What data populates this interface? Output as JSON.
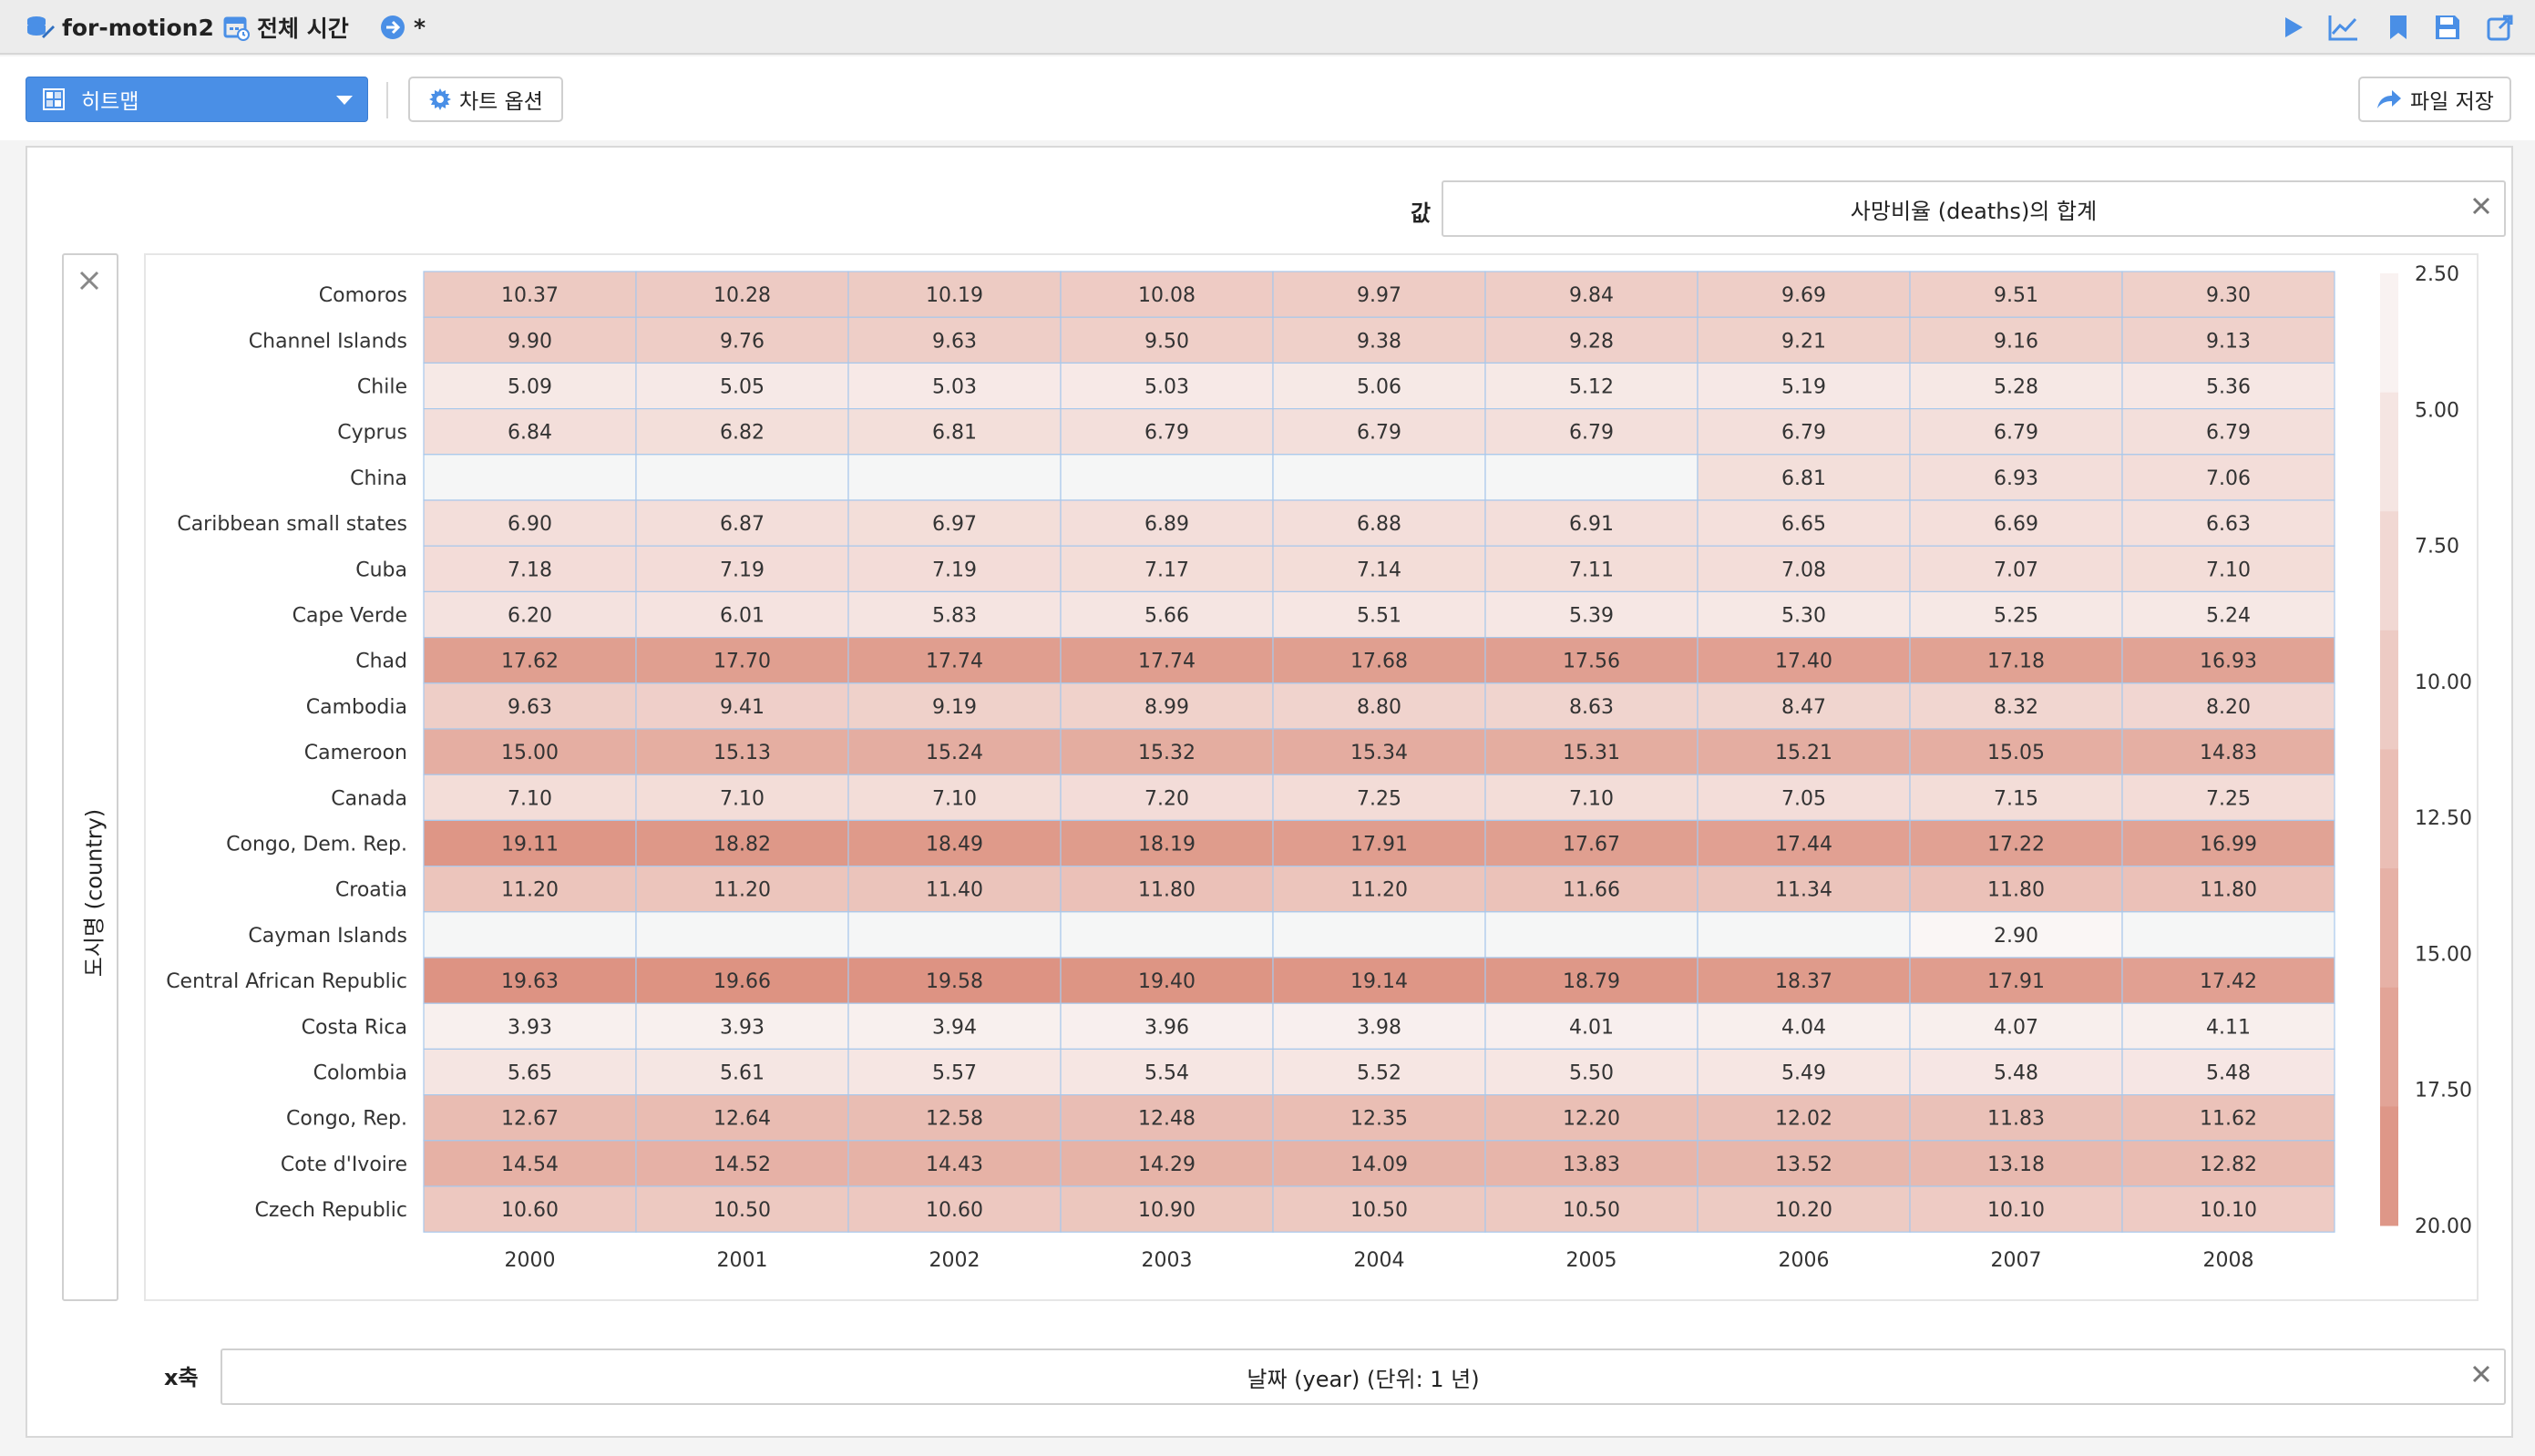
{
  "topbar": {
    "dataset_name": "for-motion2",
    "time_range": "전체 시간",
    "modified_marker": "*"
  },
  "toolbar": {
    "chart_type": "히트맵",
    "chart_options": "차트 옵션",
    "save_file": "파일 저장"
  },
  "fields": {
    "value_label": "값",
    "value_field": "사망비율 (deaths)의 합계",
    "y_axis_field": "도시명 (country)",
    "x_axis_label": "x축",
    "x_axis_field": "날짜 (year) (단위: 1 년)"
  },
  "colors": {
    "accent": "#4a8fe6",
    "heat_low": "#fbf8f8",
    "heat_high": "#dc9180",
    "empty_cell": "#f5f6f6",
    "cell_border": "#a8c8ec"
  },
  "chart_data": {
    "type": "heatmap",
    "x": [
      "2000",
      "2001",
      "2002",
      "2003",
      "2004",
      "2005",
      "2006",
      "2007",
      "2008"
    ],
    "y": [
      "Comoros",
      "Channel Islands",
      "Chile",
      "Cyprus",
      "China",
      "Caribbean small states",
      "Cuba",
      "Cape Verde",
      "Chad",
      "Cambodia",
      "Cameroon",
      "Canada",
      "Congo, Dem. Rep.",
      "Croatia",
      "Cayman Islands",
      "Central African Republic",
      "Costa Rica",
      "Colombia",
      "Congo, Rep.",
      "Cote d'Ivoire",
      "Czech Republic"
    ],
    "values": [
      [
        "10.37",
        "10.28",
        "10.19",
        "10.08",
        "9.97",
        "9.84",
        "9.69",
        "9.51",
        "9.30"
      ],
      [
        "9.90",
        "9.76",
        "9.63",
        "9.50",
        "9.38",
        "9.28",
        "9.21",
        "9.16",
        "9.13"
      ],
      [
        "5.09",
        "5.05",
        "5.03",
        "5.03",
        "5.06",
        "5.12",
        "5.19",
        "5.28",
        "5.36"
      ],
      [
        "6.84",
        "6.82",
        "6.81",
        "6.79",
        "6.79",
        "6.79",
        "6.79",
        "6.79",
        "6.79"
      ],
      [
        null,
        null,
        null,
        null,
        null,
        null,
        "6.81",
        "6.93",
        "7.06"
      ],
      [
        "6.90",
        "6.87",
        "6.97",
        "6.89",
        "6.88",
        "6.91",
        "6.65",
        "6.69",
        "6.63"
      ],
      [
        "7.18",
        "7.19",
        "7.19",
        "7.17",
        "7.14",
        "7.11",
        "7.08",
        "7.07",
        "7.10"
      ],
      [
        "6.20",
        "6.01",
        "5.83",
        "5.66",
        "5.51",
        "5.39",
        "5.30",
        "5.25",
        "5.24"
      ],
      [
        "17.62",
        "17.70",
        "17.74",
        "17.74",
        "17.68",
        "17.56",
        "17.40",
        "17.18",
        "16.93"
      ],
      [
        "9.63",
        "9.41",
        "9.19",
        "8.99",
        "8.80",
        "8.63",
        "8.47",
        "8.32",
        "8.20"
      ],
      [
        "15.00",
        "15.13",
        "15.24",
        "15.32",
        "15.34",
        "15.31",
        "15.21",
        "15.05",
        "14.83"
      ],
      [
        "7.10",
        "7.10",
        "7.10",
        "7.20",
        "7.25",
        "7.10",
        "7.05",
        "7.15",
        "7.25"
      ],
      [
        "19.11",
        "18.82",
        "18.49",
        "18.19",
        "17.91",
        "17.67",
        "17.44",
        "17.22",
        "16.99"
      ],
      [
        "11.20",
        "11.20",
        "11.40",
        "11.80",
        "11.20",
        "11.66",
        "11.34",
        "11.80",
        "11.80"
      ],
      [
        null,
        null,
        null,
        null,
        null,
        null,
        null,
        "2.90",
        null
      ],
      [
        "19.63",
        "19.66",
        "19.58",
        "19.40",
        "19.14",
        "18.79",
        "18.37",
        "17.91",
        "17.42"
      ],
      [
        "3.93",
        "3.93",
        "3.94",
        "3.96",
        "3.98",
        "4.01",
        "4.04",
        "4.07",
        "4.11"
      ],
      [
        "5.65",
        "5.61",
        "5.57",
        "5.54",
        "5.52",
        "5.50",
        "5.49",
        "5.48",
        "5.48"
      ],
      [
        "12.67",
        "12.64",
        "12.58",
        "12.48",
        "12.35",
        "12.20",
        "12.02",
        "11.83",
        "11.62"
      ],
      [
        "14.54",
        "14.52",
        "14.43",
        "14.29",
        "14.09",
        "13.83",
        "13.52",
        "13.18",
        "12.82"
      ],
      [
        "10.60",
        "10.50",
        "10.60",
        "10.90",
        "10.50",
        "10.50",
        "10.20",
        "10.10",
        "10.10"
      ]
    ],
    "color_scale": {
      "min": 2.5,
      "max": 20,
      "ticks": [
        "2.50",
        "5.00",
        "7.50",
        "10.00",
        "12.50",
        "15.00",
        "17.50",
        "20.00"
      ]
    },
    "legend": "right"
  }
}
